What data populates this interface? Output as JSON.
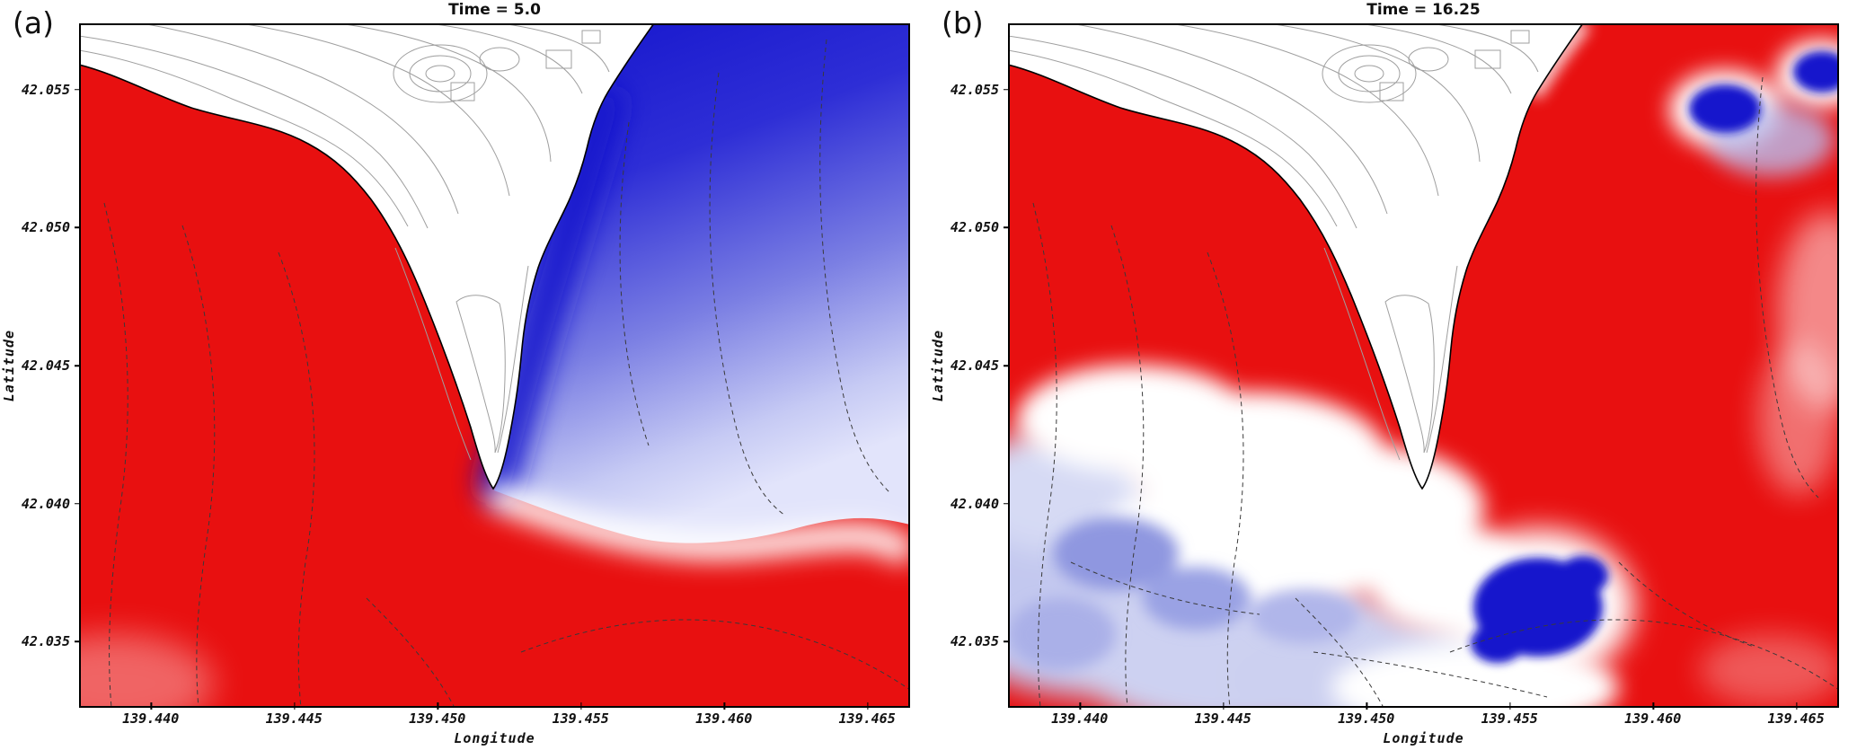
{
  "figure": {
    "panels": [
      {
        "letter": "(a)"
      },
      {
        "letter": "(b)"
      }
    ]
  },
  "chart_data": [
    {
      "type": "heatmap",
      "panel": "a",
      "title": "Time = 5.0",
      "xlabel": "Longitude",
      "ylabel": "Latitude",
      "xlim": [
        139.4375,
        139.4665
      ],
      "ylim": [
        42.0326,
        42.0574
      ],
      "xtick_labels": [
        "139.440",
        "139.445",
        "139.450",
        "139.455",
        "139.460",
        "139.465"
      ],
      "ytick_labels": [
        "42.055",
        "42.050",
        "42.045",
        "42.040",
        "42.035"
      ],
      "grid": false,
      "legend": false,
      "colormap": "diverging blue-white-red field over coastal map",
      "features": [
        "large positive (red) field over the sea west and south of the cape",
        "large negative (deep-to-light blue) field in the bay east of the cape, fading toward the south-east",
        "white land area with thin gray topographic contour lines at top center",
        "solid black coastline around a cape pointing south near longitude 139.455",
        "dashed bathymetric contour lines over the sea regions"
      ]
    },
    {
      "type": "heatmap",
      "panel": "b",
      "title": "Time = 16.25",
      "xlabel": "Longitude",
      "ylabel": "Latitude",
      "xlim": [
        139.4375,
        139.4665
      ],
      "ylim": [
        42.0326,
        42.0574
      ],
      "xtick_labels": [
        "139.440",
        "139.445",
        "139.450",
        "139.455",
        "139.460",
        "139.465"
      ],
      "ytick_labels": [
        "42.055",
        "42.050",
        "42.045",
        "42.040",
        "42.035"
      ],
      "grid": false,
      "legend": false,
      "colormap": "diverging blue-white-red field over coastal map",
      "features": [
        "positive (red) field now covering both sides of the cape including the eastern bay",
        "two small deep-blue patches near the upper-right coastline",
        "wavy white / pale-blue band crossing the lower-left sea area",
        "prominent deep-blue blob south-east of the cape tip near 139.457, 42.037",
        "pale blue and white mottled field along the bottom of the domain",
        "same land, coastline, topographic and dashed bathymetric contours as panel (a)"
      ]
    }
  ],
  "colors": {
    "field_positive_red": "#e81010",
    "field_negative_deep_blue": "#1414cc",
    "field_negative_light_blue": "#c5c9f2",
    "land_white": "#ffffff",
    "coastline_black": "#000000",
    "topo_contour_gray": "#9f9f9f",
    "bathy_contour_dark": "#3a3a3a"
  }
}
